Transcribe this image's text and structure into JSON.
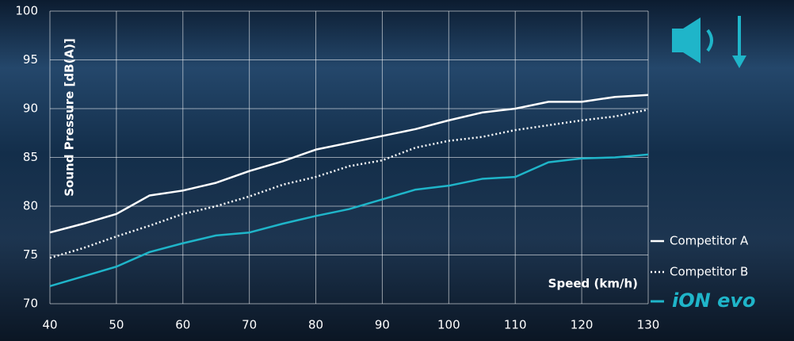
{
  "chart_data": {
    "type": "line",
    "y_label": "Sound Pressure [dB(A)]",
    "x_label": "Speed (km/h)",
    "x": [
      40,
      45,
      50,
      55,
      60,
      65,
      70,
      75,
      80,
      85,
      90,
      95,
      100,
      105,
      110,
      115,
      120,
      125,
      130
    ],
    "series": [
      {
        "name": "Competitor A",
        "color": "#ffffff",
        "style": "solid",
        "values": [
          77.3,
          78.2,
          79.2,
          81.1,
          81.6,
          82.4,
          83.6,
          84.6,
          85.8,
          86.5,
          87.2,
          87.9,
          88.8,
          89.6,
          90.0,
          90.7,
          90.7,
          91.2,
          91.4
        ]
      },
      {
        "name": "Competitor B",
        "color": "#ffffff",
        "style": "dotted",
        "values": [
          74.7,
          75.7,
          76.9,
          78.0,
          79.2,
          80.0,
          81.0,
          82.2,
          83.0,
          84.1,
          84.7,
          86.0,
          86.7,
          87.1,
          87.8,
          88.3,
          88.8,
          89.2,
          89.9
        ]
      },
      {
        "name": "iON evo",
        "color": "#1fb5c9",
        "style": "solid",
        "values": [
          71.8,
          72.8,
          73.8,
          75.3,
          76.2,
          77.0,
          77.3,
          78.2,
          79.0,
          79.7,
          80.7,
          81.7,
          82.1,
          82.8,
          83.0,
          84.5,
          84.9,
          85.0,
          85.3
        ]
      }
    ],
    "xlim": [
      40,
      130
    ],
    "xticks": [
      40,
      50,
      60,
      70,
      80,
      90,
      100,
      110,
      120,
      130
    ],
    "ylim": [
      70,
      100
    ],
    "yticks": [
      70,
      75,
      80,
      85,
      90,
      95,
      100
    ],
    "grid": true,
    "legend": "bottom-right"
  }
}
